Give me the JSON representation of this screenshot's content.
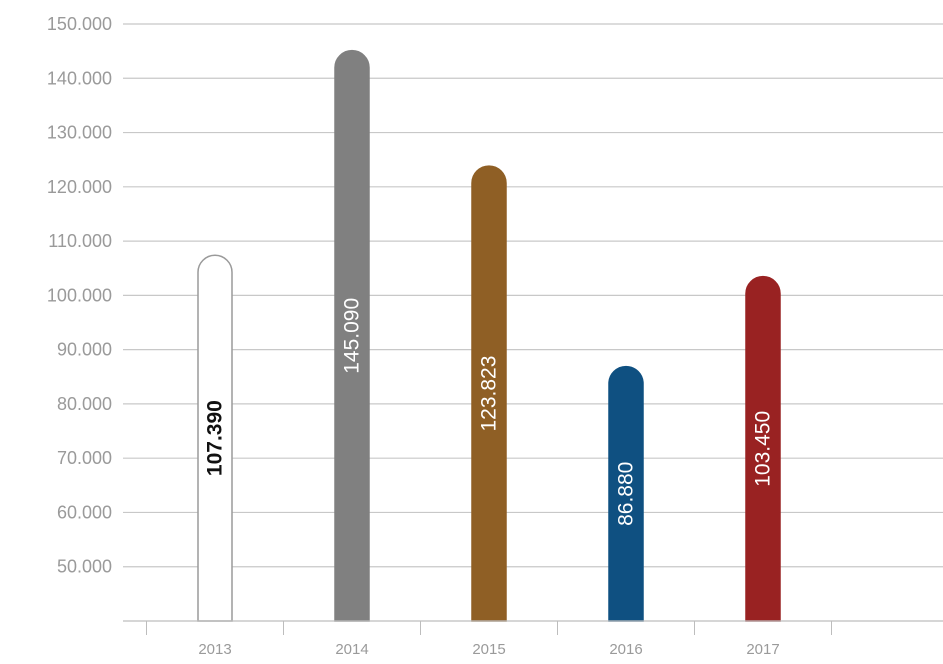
{
  "chart_data": {
    "type": "bar",
    "categories": [
      "2013",
      "2014",
      "2015",
      "2016",
      "2017"
    ],
    "values": [
      107390,
      145090,
      123823,
      86880,
      103450
    ],
    "value_labels": [
      "107.390",
      "145.090",
      "123.823",
      "86.880",
      "103.450"
    ],
    "bar_colors": [
      "#ffffff",
      "#808080",
      "#8f5f25",
      "#0f5081",
      "#992222"
    ],
    "bar_outline_colors": [
      "#9a9a9a",
      "#808080",
      "#8f5f25",
      "#0f5081",
      "#992222"
    ],
    "label_colors": [
      "#111111",
      "#ffffff",
      "#ffffff",
      "#ffffff",
      "#ffffff"
    ],
    "yticks": [
      50000,
      60000,
      70000,
      80000,
      90000,
      100000,
      110000,
      120000,
      130000,
      140000,
      150000
    ],
    "ytick_labels": [
      "50.000",
      "60.000",
      "70.000",
      "80.000",
      "90.000",
      "100.000",
      "110.000",
      "120.000",
      "130.000",
      "140.000",
      "150.000"
    ],
    "ylim": [
      40000,
      150000
    ],
    "grid": true,
    "grid_color": "#c8c8c8",
    "axis_color": "#bdbdbd",
    "title": "",
    "xlabel": "",
    "ylabel": ""
  }
}
